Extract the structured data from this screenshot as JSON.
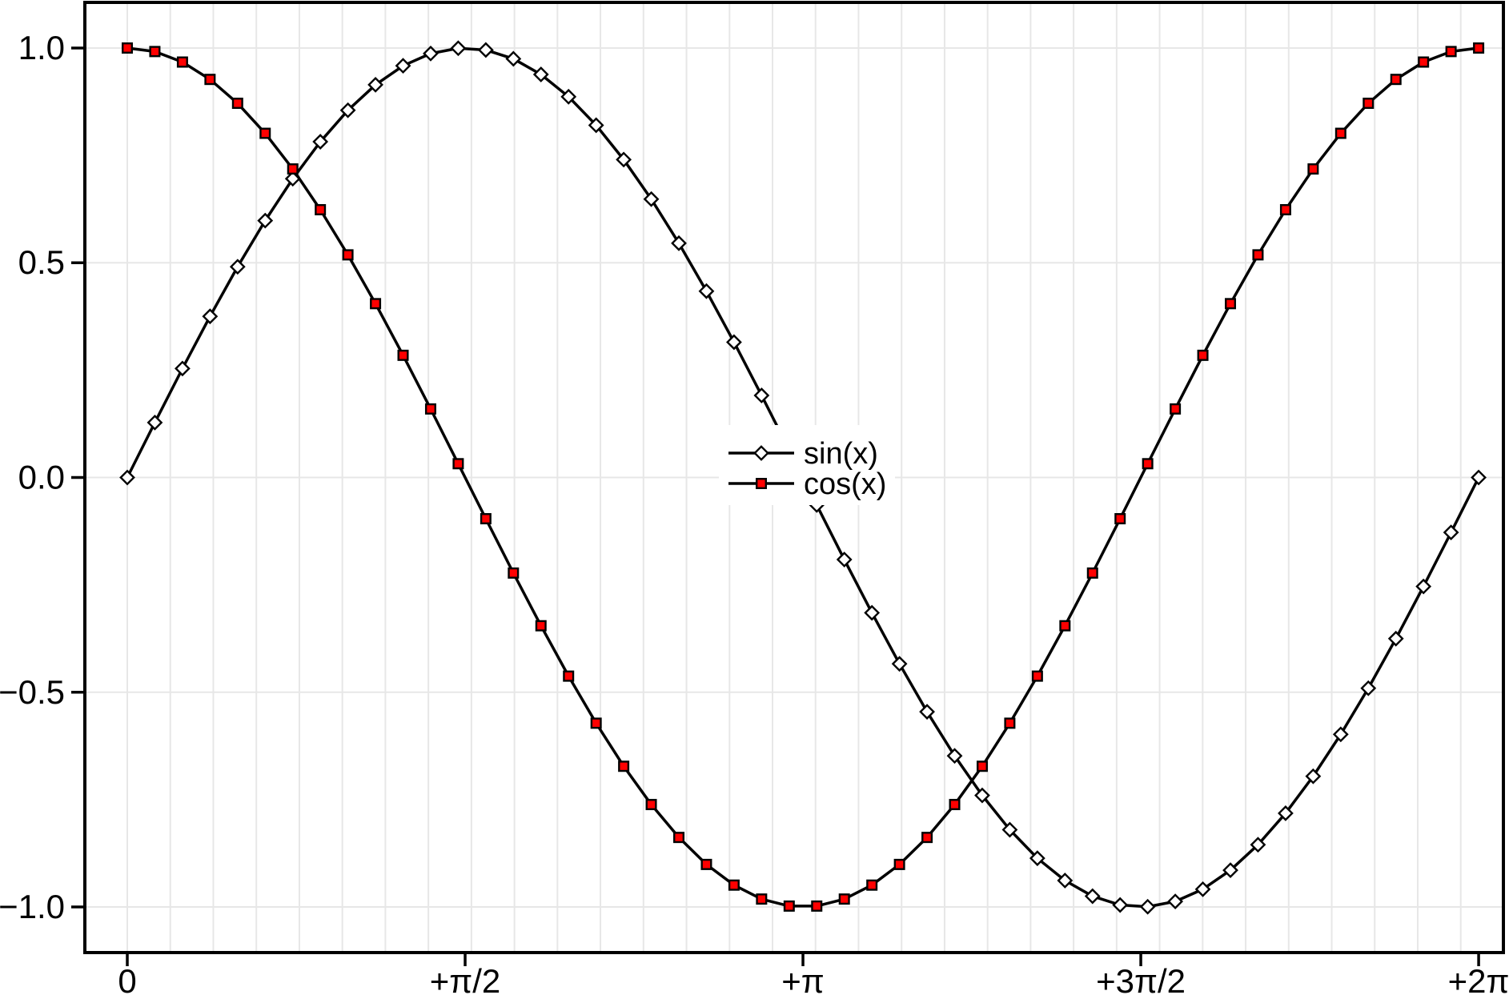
{
  "figure": {
    "background": "#ffffff",
    "frame_color": "#000000",
    "grid_color": "#e7e7e7"
  },
  "chart_data": {
    "type": "line",
    "title": "",
    "xlabel": "",
    "ylabel": "",
    "xlim": [
      -0.1973,
      6.3983
    ],
    "ylim": [
      -1.1062,
      1.1062
    ],
    "grid": {
      "x_minor_start": 0,
      "x_minor_end": 6.2,
      "x_minor_step": 0.2,
      "y_values": [
        -1.0,
        -0.5,
        0.0,
        0.5,
        1.0
      ],
      "color": "#e7e7e7"
    },
    "x_ticks": [
      {
        "value": 0,
        "label": "0"
      },
      {
        "value": 1.5708,
        "label": "+π/2"
      },
      {
        "value": 3.1416,
        "label": "+π"
      },
      {
        "value": 4.7124,
        "label": "+3π/2"
      },
      {
        "value": 6.2832,
        "label": "+2π"
      }
    ],
    "y_ticks": [
      {
        "value": 1.0,
        "label": "1.0"
      },
      {
        "value": 0.5,
        "label": "0.5"
      },
      {
        "value": 0.0,
        "label": "0.0"
      },
      {
        "value": -0.5,
        "label": "−0.5"
      },
      {
        "value": -1.0,
        "label": "−1.0"
      }
    ],
    "x": [
      0,
      0.1282,
      0.2565,
      0.3847,
      0.5129,
      0.6411,
      0.7694,
      0.8976,
      1.0258,
      1.1541,
      1.2823,
      1.4105,
      1.5387,
      1.667,
      1.7952,
      1.9234,
      2.0517,
      2.1799,
      2.3081,
      2.4363,
      2.5646,
      2.6928,
      2.821,
      2.9492,
      3.0775,
      3.2057,
      3.3339,
      3.4622,
      3.5904,
      3.7186,
      3.8468,
      3.9751,
      4.1033,
      4.2315,
      4.3598,
      4.488,
      4.6162,
      4.7444,
      4.8727,
      5.0009,
      5.1291,
      5.2573,
      5.3856,
      5.5138,
      5.642,
      5.7703,
      5.8985,
      6.0267,
      6.1549,
      6.2832
    ],
    "series": [
      {
        "name": "sin(x)",
        "line_color": "#000000",
        "marker": "diamond",
        "marker_fill": "#ffffff",
        "marker_edge": "#000000",
        "values": [
          0.0,
          0.1279,
          0.2537,
          0.3752,
          0.4907,
          0.5981,
          0.6957,
          0.7818,
          0.8551,
          0.9144,
          0.9587,
          0.9872,
          0.9995,
          0.9954,
          0.9749,
          0.9385,
          0.8866,
          0.8202,
          0.7402,
          0.6482,
          0.5455,
          0.4339,
          0.3151,
          0.1911,
          0.0641,
          -0.0641,
          -0.1911,
          -0.3151,
          -0.4339,
          -0.5455,
          -0.6482,
          -0.7402,
          -0.8202,
          -0.8866,
          -0.9385,
          -0.9749,
          -0.9954,
          -0.9995,
          -0.9872,
          -0.9587,
          -0.9144,
          -0.8551,
          -0.7818,
          -0.6957,
          -0.5981,
          -0.4907,
          -0.3752,
          -0.2537,
          -0.1279,
          0.0
        ]
      },
      {
        "name": "cos(x)",
        "line_color": "#000000",
        "marker": "square",
        "marker_fill": "#ff0000",
        "marker_edge": "#000000",
        "values": [
          1.0,
          0.9918,
          0.9673,
          0.9269,
          0.8713,
          0.8014,
          0.7184,
          0.6235,
          0.5184,
          0.4048,
          0.2845,
          0.1596,
          0.0321,
          -0.096,
          -0.2225,
          -0.3452,
          -0.4625,
          -0.5721,
          -0.6724,
          -0.7615,
          -0.8381,
          -0.901,
          -0.9491,
          -0.9816,
          -0.9979,
          -0.9979,
          -0.9816,
          -0.9491,
          -0.901,
          -0.8381,
          -0.7615,
          -0.6724,
          -0.5721,
          -0.4625,
          -0.3452,
          -0.2225,
          -0.096,
          0.0321,
          0.1596,
          0.2845,
          0.4048,
          0.5184,
          0.6235,
          0.7184,
          0.8014,
          0.8713,
          0.9269,
          0.9673,
          0.9918,
          1.0
        ]
      }
    ],
    "legend": {
      "position": "center",
      "background": "#ffffff",
      "entries": [
        "sin(x)",
        "cos(x)"
      ]
    }
  }
}
